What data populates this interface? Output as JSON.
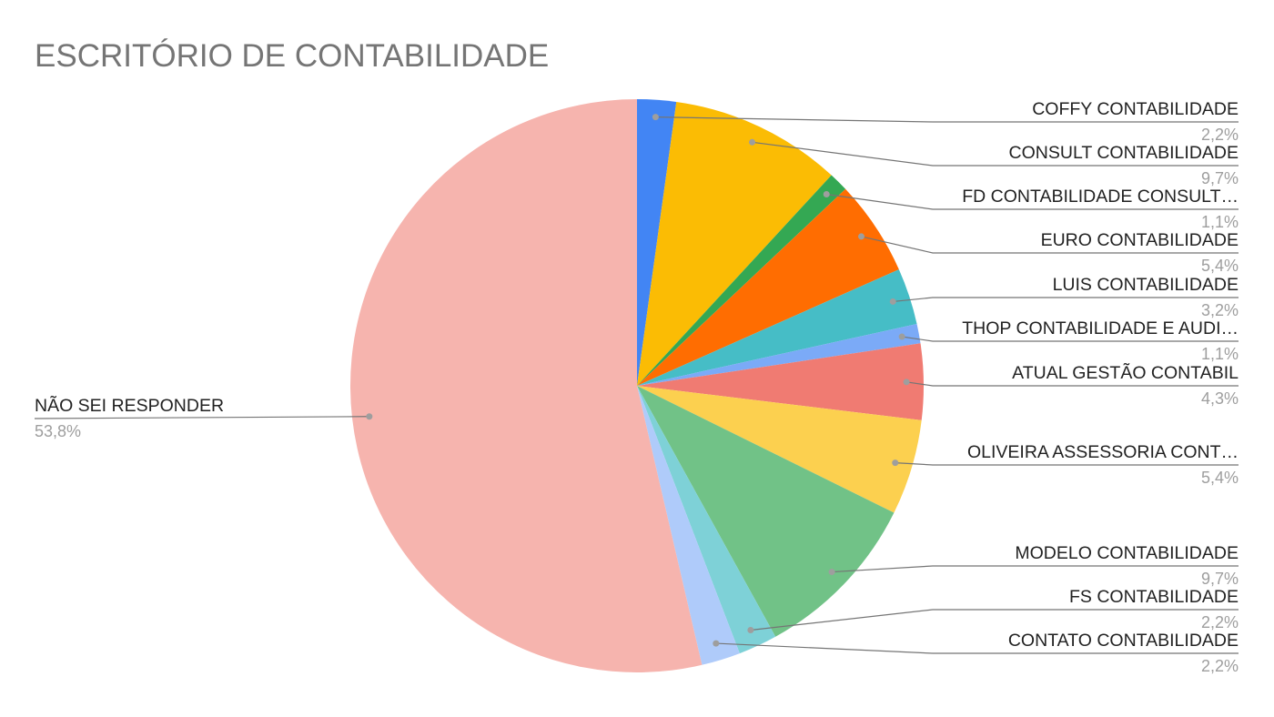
{
  "chart_data": {
    "type": "pie",
    "title": "ESCRITÓRIO DE CONTABILIDADE",
    "slices": [
      {
        "label": "COFFY CONTABILIDADE",
        "value": 2.2,
        "pct_label": "2,2%",
        "color": "#4285f4"
      },
      {
        "label": "CONSULT CONTABILIDADE",
        "value": 9.7,
        "pct_label": "9,7%",
        "color": "#fbbc04"
      },
      {
        "label": "FD CONTABILIDADE CONSULT…",
        "value": 1.1,
        "pct_label": "1,1%",
        "color": "#34a853"
      },
      {
        "label": "EURO CONTABILIDADE",
        "value": 5.4,
        "pct_label": "5,4%",
        "color": "#ff6d01"
      },
      {
        "label": "LUIS CONTABILIDADE",
        "value": 3.2,
        "pct_label": "3,2%",
        "color": "#46bdc6"
      },
      {
        "label": "THOP CONTABILIDADE E AUDI…",
        "value": 1.1,
        "pct_label": "1,1%",
        "color": "#7baaf7"
      },
      {
        "label": "ATUAL GESTÃO CONTABIL",
        "value": 4.3,
        "pct_label": "4,3%",
        "color": "#f07b72"
      },
      {
        "label": "OLIVEIRA ASSESSORIA CONT…",
        "value": 5.4,
        "pct_label": "5,4%",
        "color": "#fcd04f"
      },
      {
        "label": "MODELO CONTABILIDADE",
        "value": 9.7,
        "pct_label": "9,7%",
        "color": "#71c287"
      },
      {
        "label": "FS CONTABILIDADE",
        "value": 2.2,
        "pct_label": "2,2%",
        "color": "#7ed1d7"
      },
      {
        "label": "CONTATO CONTABILIDADE",
        "value": 2.2,
        "pct_label": "2,2%",
        "color": "#afcbfa"
      },
      {
        "label": "NÃO SEI RESPONDER",
        "value": 53.8,
        "pct_label": "53,8%",
        "color": "#f6b4ae"
      }
    ]
  }
}
